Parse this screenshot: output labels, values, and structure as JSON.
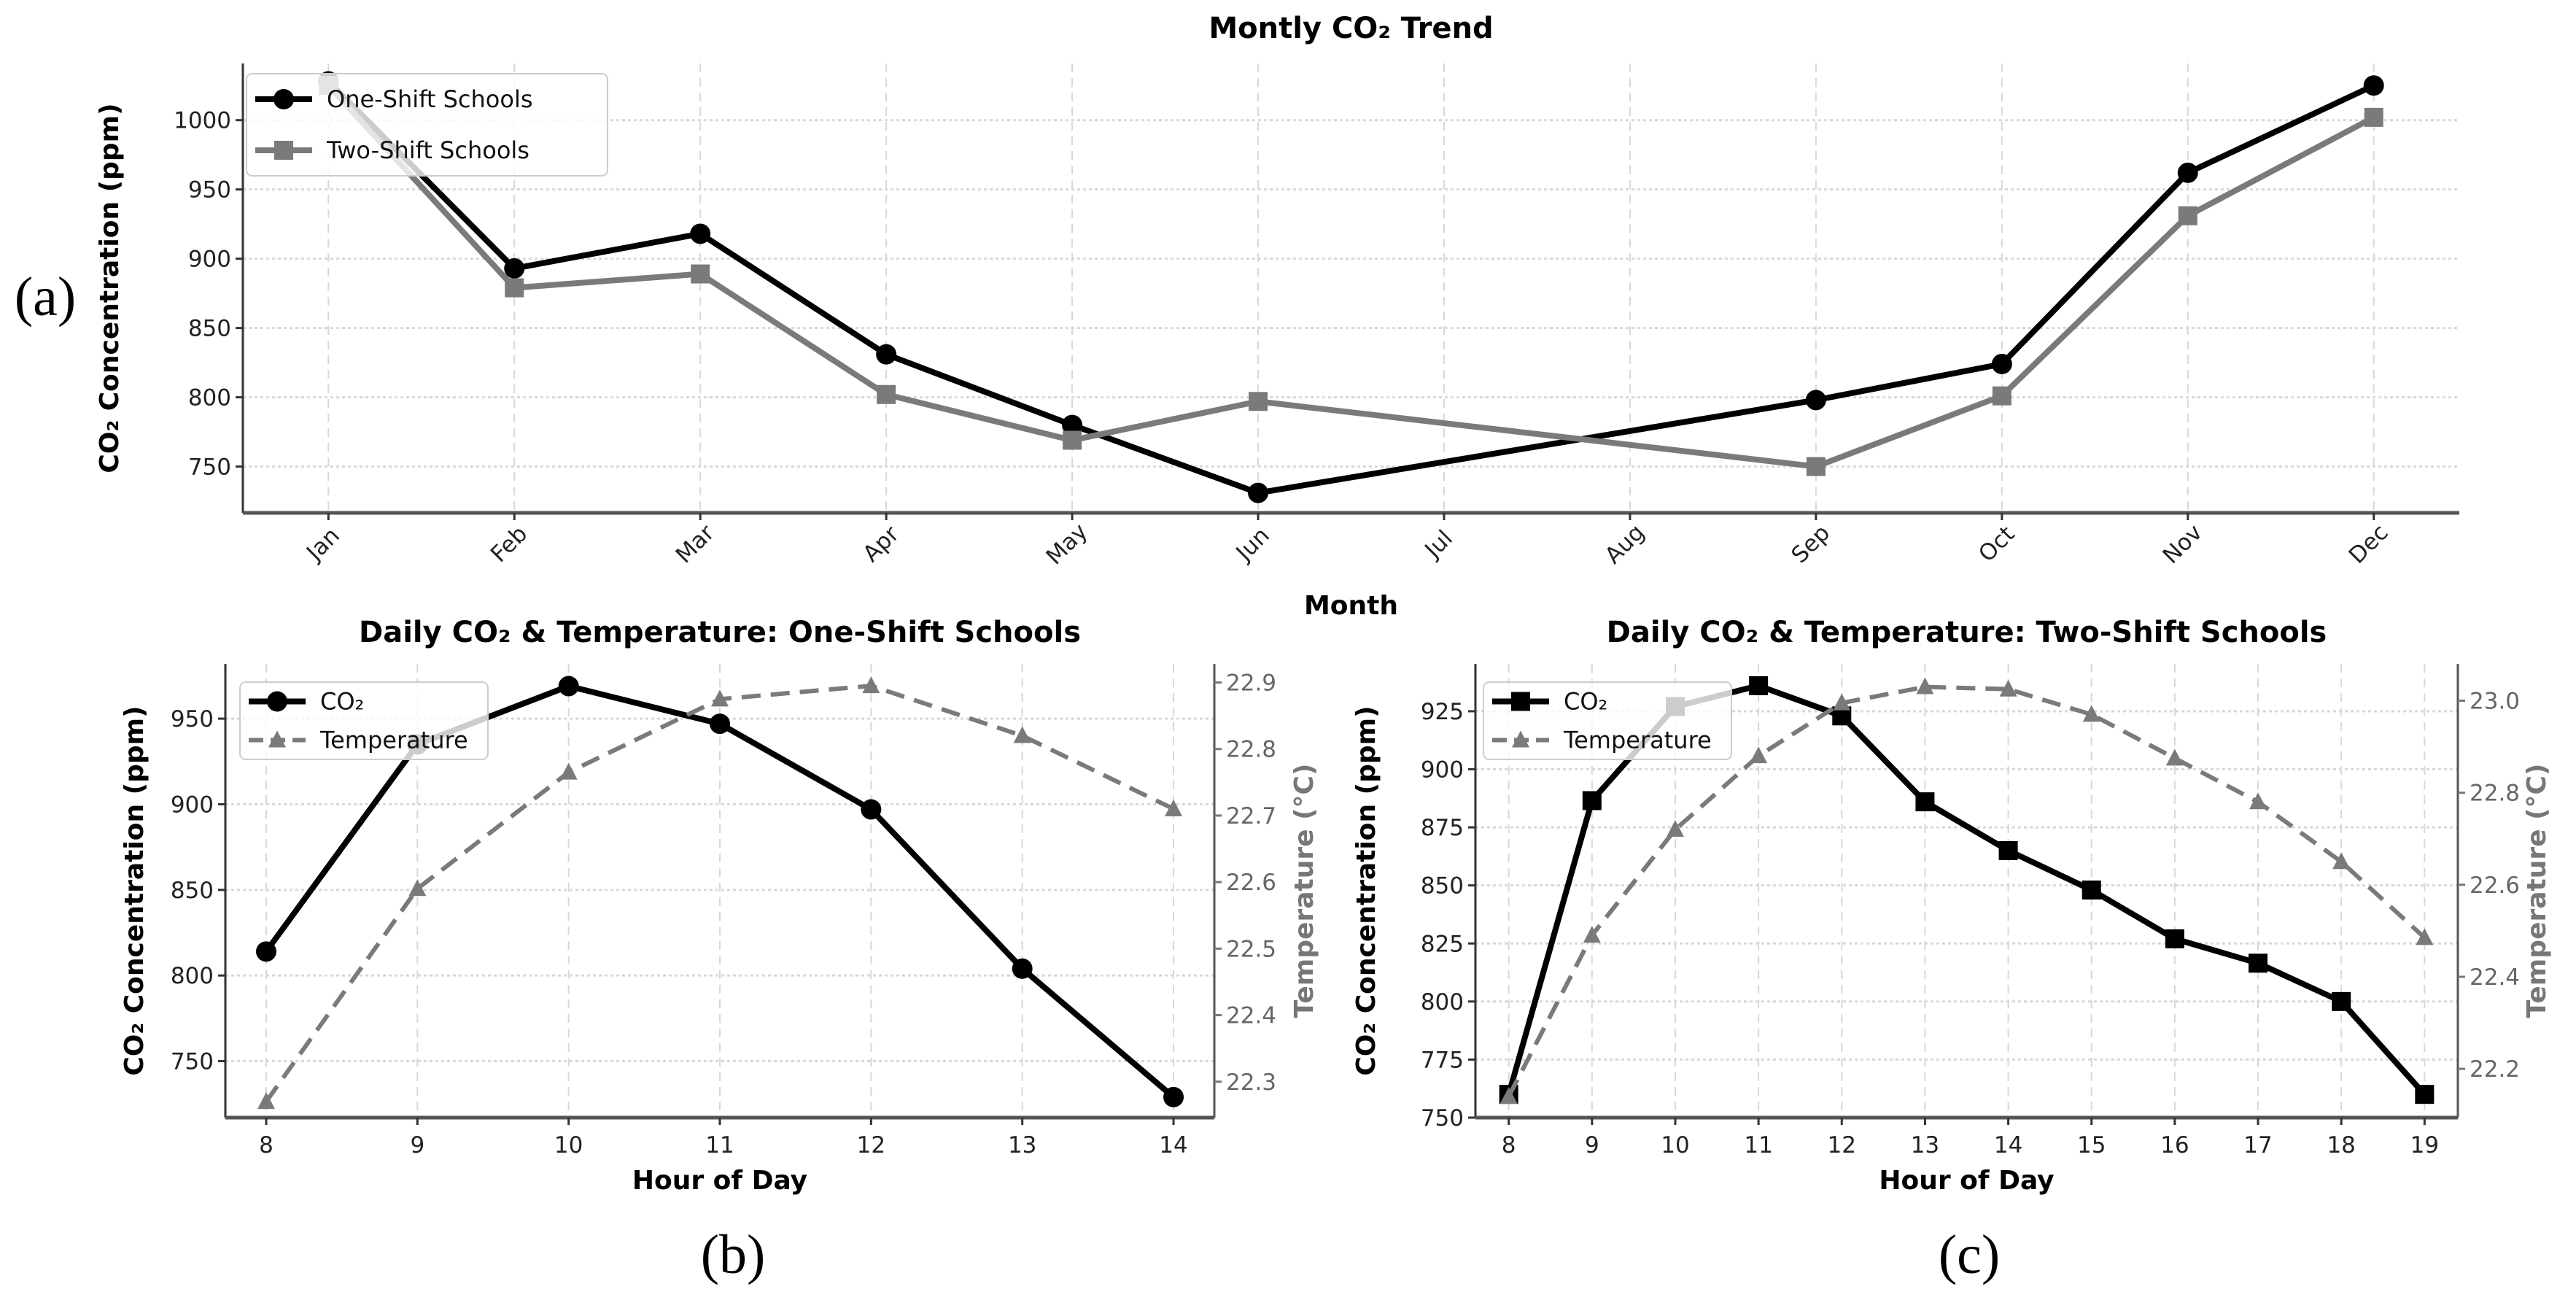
{
  "panels": [
    "(a)",
    "(b)",
    "(c)"
  ],
  "colors": {
    "co2_one": "#000000",
    "co2_two": "#7a7a7a",
    "temperature": "#7a7a7a",
    "grid": "#d8d8d8"
  },
  "chart_data": [
    {
      "type": "line",
      "title": "Montly CO₂ Trend",
      "xlabel": "Month",
      "ylabel": "CO₂ Concentration (ppm)",
      "categories": [
        "Jan",
        "Feb",
        "Mar",
        "Apr",
        "May",
        "Jun",
        "Jul",
        "Aug",
        "Sep",
        "Oct",
        "Nov",
        "Dec"
      ],
      "ylim": [
        716.6,
        1040.9
      ],
      "yticks": [
        750,
        800,
        850,
        900,
        950,
        1000
      ],
      "grid": true,
      "legend": "top-left",
      "series": [
        {
          "name": "One-Shift Schools",
          "marker": "circle",
          "values": [
            1028,
            893,
            918,
            831,
            780,
            731,
            null,
            null,
            798,
            824,
            962,
            1025
          ]
        },
        {
          "name": "Two-Shift Schools",
          "marker": "square",
          "values": [
            1025,
            879,
            889,
            802,
            769,
            797,
            null,
            null,
            750,
            801,
            931,
            1002
          ]
        }
      ]
    },
    {
      "type": "line",
      "title": "Daily CO₂ & Temperature: One-Shift Schools",
      "xlabel": "Hour of Day",
      "ylabel": "CO₂ Concentration (ppm)",
      "y2label": "Temperature (°C)",
      "x": [
        8,
        9,
        10,
        11,
        12,
        13,
        14
      ],
      "ylim": [
        717,
        982
      ],
      "y2lim": [
        22.246,
        22.928
      ],
      "yticks": [
        750,
        800,
        850,
        900,
        950
      ],
      "y2ticks": [
        22.3,
        22.4,
        22.5,
        22.6,
        22.7,
        22.8,
        22.9
      ],
      "grid": true,
      "legend": "top-left",
      "series": [
        {
          "name": "CO₂",
          "axis": "left",
          "marker": "circle",
          "values": [
            814,
            935,
            969,
            947,
            897,
            804,
            729
          ]
        },
        {
          "name": "Temperature",
          "axis": "right",
          "marker": "triangle",
          "dashed": true,
          "values": [
            22.27,
            22.59,
            22.765,
            22.875,
            22.895,
            22.82,
            22.71
          ]
        }
      ]
    },
    {
      "type": "line",
      "title": "Daily CO₂ & Temperature: Two-Shift Schools",
      "xlabel": "Hour of Day",
      "ylabel": "CO₂ Concentration (ppm)",
      "y2label": "Temperature (°C)",
      "x": [
        8,
        9,
        10,
        11,
        12,
        13,
        14,
        15,
        16,
        17,
        18,
        19
      ],
      "ylim": [
        750,
        945.4
      ],
      "y2lim": [
        22.094,
        23.08
      ],
      "yticks": [
        750,
        775,
        800,
        825,
        850,
        875,
        900,
        925
      ],
      "y2ticks": [
        22.2,
        22.4,
        22.6,
        22.8,
        23.0
      ],
      "grid": true,
      "legend": "top-left",
      "series": [
        {
          "name": "CO₂",
          "axis": "left",
          "marker": "square",
          "values": [
            760,
            886.5,
            927,
            936,
            923,
            886,
            865,
            848,
            827,
            816.5,
            800,
            760
          ]
        },
        {
          "name": "Temperature",
          "axis": "right",
          "marker": "triangle",
          "dashed": true,
          "values": [
            22.14,
            22.49,
            22.72,
            22.88,
            22.995,
            23.03,
            23.025,
            22.97,
            22.875,
            22.78,
            22.65,
            22.485
          ]
        }
      ]
    }
  ]
}
